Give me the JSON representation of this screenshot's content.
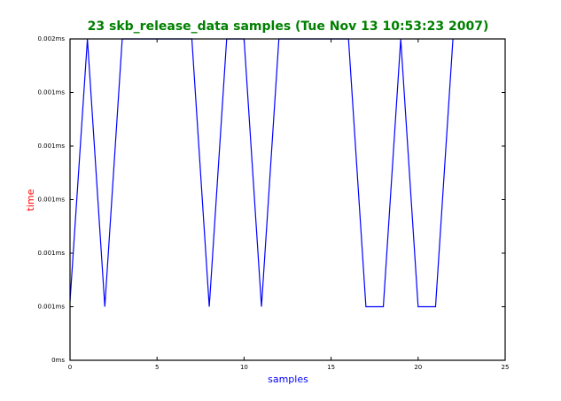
{
  "chart_data": {
    "type": "line",
    "title": "23 skb_release_data samples (Tue Nov 13 10:53:23 2007)",
    "xlabel": "samples",
    "ylabel": "time",
    "x": [
      0,
      1,
      2,
      3,
      4,
      5,
      6,
      7,
      8,
      9,
      10,
      11,
      12,
      13,
      14,
      15,
      16,
      17,
      18,
      19,
      20,
      21,
      22
    ],
    "series": [
      {
        "color": "#0000ff",
        "values": [
          0.00062,
          0.0016,
          0.0006,
          0.0016,
          0.0016,
          0.0016,
          0.0016,
          0.0016,
          0.0006,
          0.0016,
          0.0016,
          0.0006,
          0.0016,
          0.0016,
          0.0016,
          0.0016,
          0.0016,
          0.0006,
          0.0006,
          0.0016,
          0.0006,
          0.0006,
          0.0016
        ]
      }
    ],
    "xlim": [
      0,
      25
    ],
    "xticks": [
      0,
      5,
      10,
      15,
      20,
      25
    ],
    "ylim": [
      0.0004,
      0.0016
    ],
    "yticks": [
      {
        "value": 0.0004,
        "label": "0ms"
      },
      {
        "value": 0.0006,
        "label": "0.001ms"
      },
      {
        "value": 0.0008,
        "label": "0.001ms"
      },
      {
        "value": 0.001,
        "label": "0.001ms"
      },
      {
        "value": 0.0012,
        "label": "0.001ms"
      },
      {
        "value": 0.0014,
        "label": "0.001ms"
      },
      {
        "value": 0.0016,
        "label": "0.002ms"
      }
    ]
  }
}
